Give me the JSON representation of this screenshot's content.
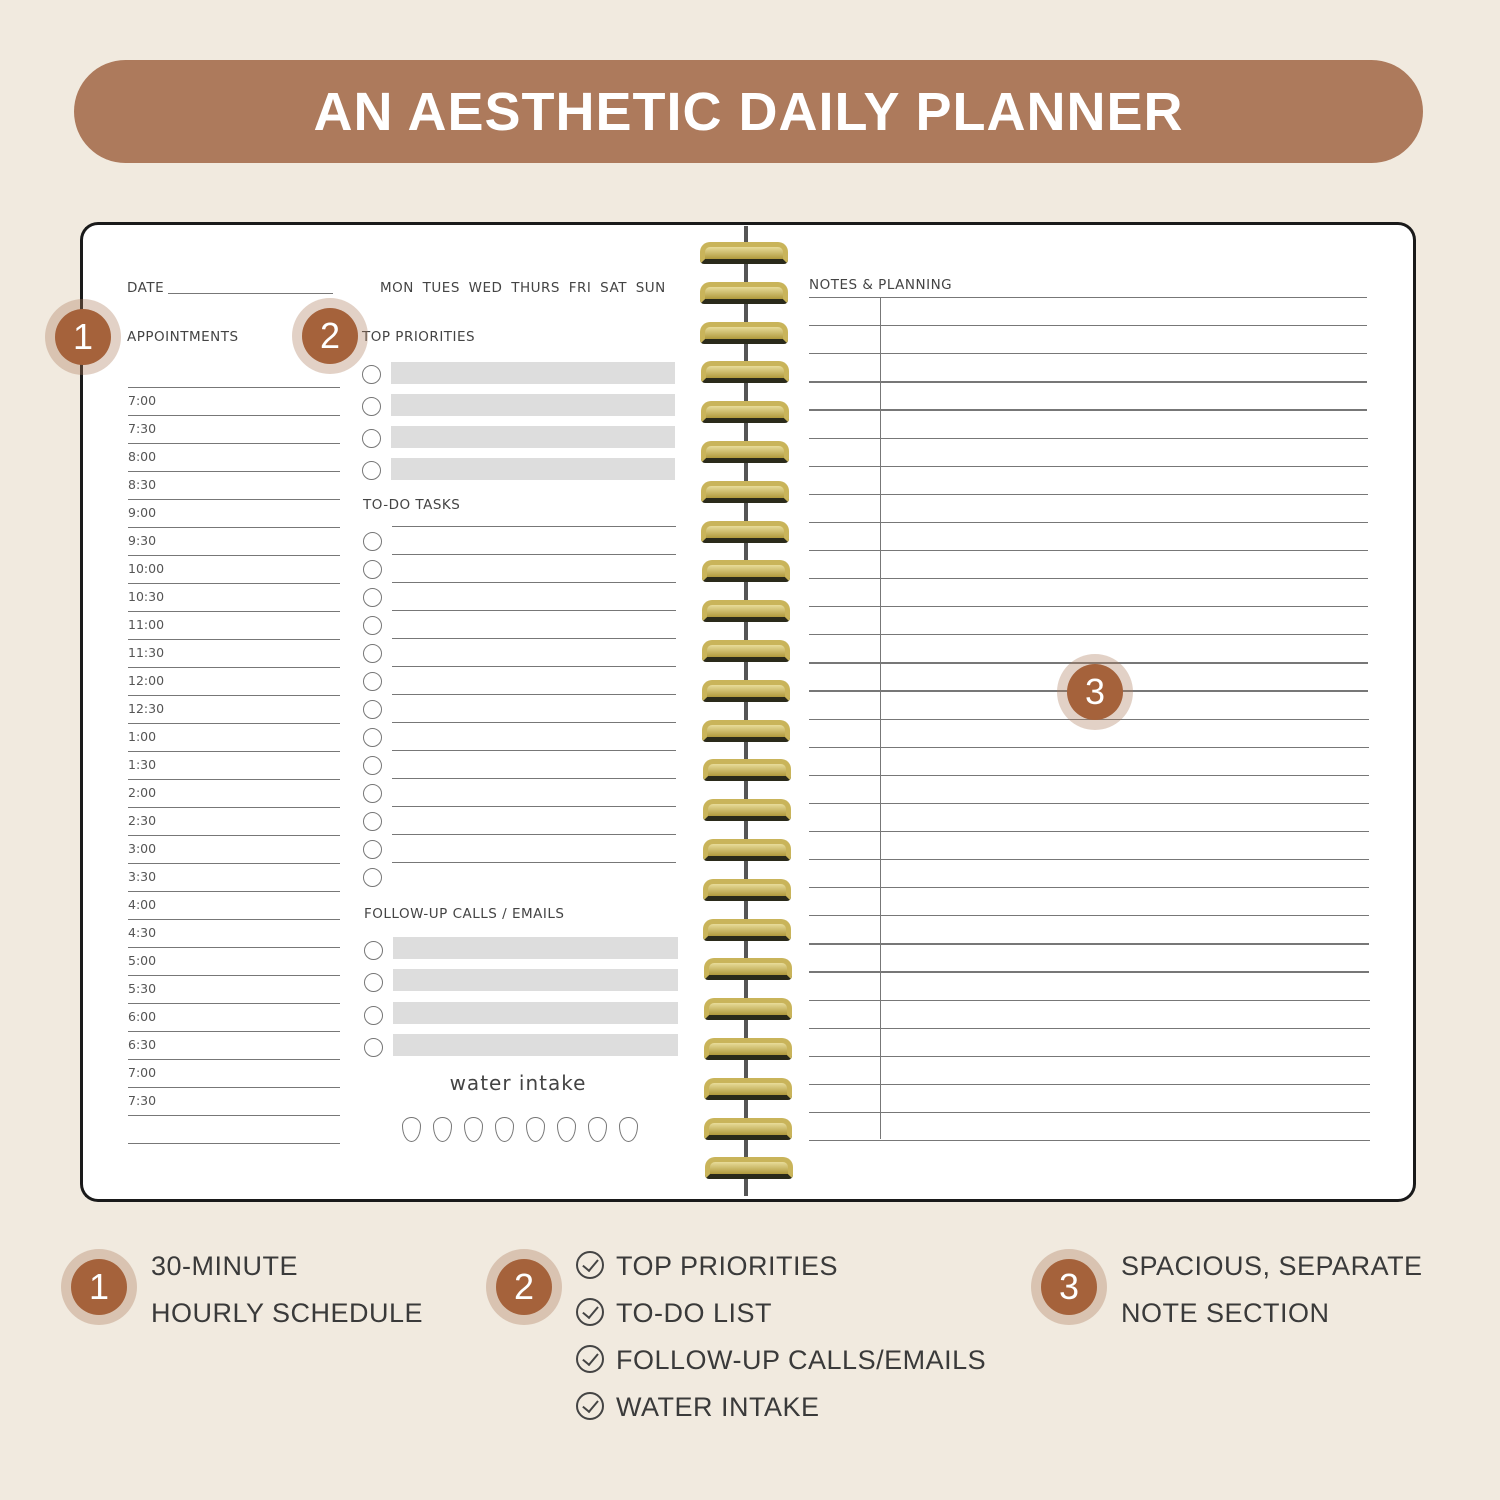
{
  "banner": {
    "title": "AN AESTHETIC DAILY PLANNER"
  },
  "colors": {
    "background": "#f1eadf",
    "accent": "#ad7a5c",
    "badge": "#a5623b"
  },
  "left_page": {
    "date_label": "DATE",
    "days": "MON TUES WED THURS FRI SAT SUN",
    "appointments_label": "APPOINTMENTS",
    "times": [
      "7:00",
      "7:30",
      "8:00",
      "8:30",
      "9:00",
      "9:30",
      "10:00",
      "10:30",
      "11:00",
      "11:30",
      "12:00",
      "12:30",
      "1:00",
      "1:30",
      "2:00",
      "2:30",
      "3:00",
      "3:30",
      "4:00",
      "4:30",
      "5:00",
      "5:30",
      "6:00",
      "6:30",
      "7:00",
      "7:30"
    ],
    "top_priorities_label": "TOP PRIORITIES",
    "todo_label": "TO-DO TASKS",
    "followup_label": "FOLLOW-UP CALLS / EMAILS",
    "water_label": "water intake"
  },
  "right_page": {
    "notes_label": "NOTES & PLANNING"
  },
  "callouts": [
    "1",
    "2",
    "3"
  ],
  "features": [
    {
      "number": "1",
      "lines": [
        "30-MINUTE",
        "HOURLY SCHEDULE"
      ]
    },
    {
      "number": "2",
      "items": [
        "TOP PRIORITIES",
        "TO-DO LIST",
        "FOLLOW-UP CALLS/EMAILS",
        "WATER INTAKE"
      ],
      "icon": "check-circle-icon"
    },
    {
      "number": "3",
      "lines": [
        "SPACIOUS, SEPARATE",
        "NOTE SECTION"
      ]
    }
  ]
}
